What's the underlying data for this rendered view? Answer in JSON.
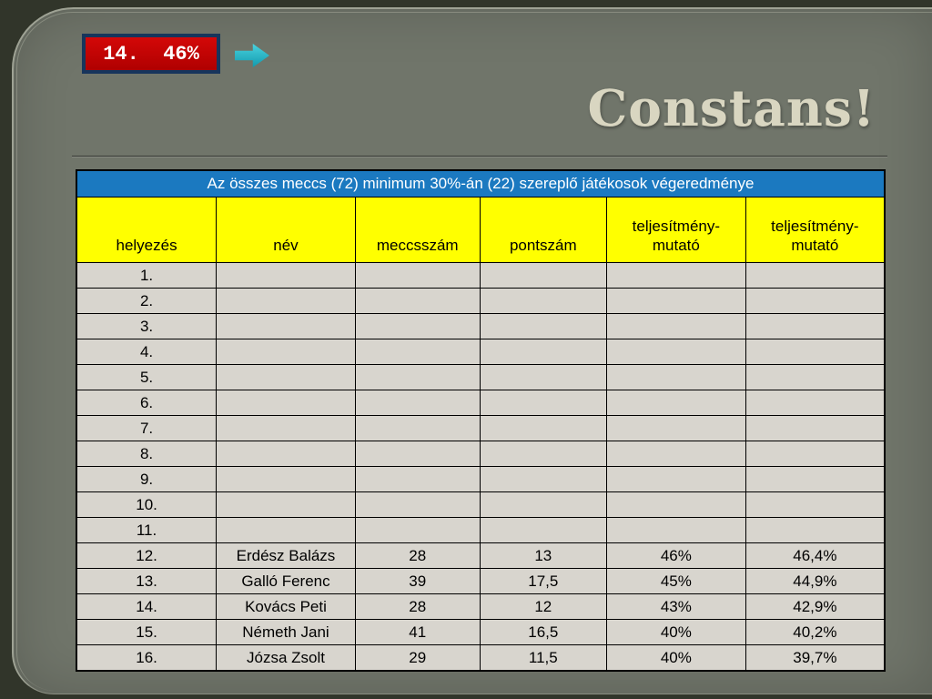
{
  "badge": {
    "label": "14.  46%"
  },
  "title": "Constans!",
  "table": {
    "caption": "Az összes meccs (72) minimum 30%-án (22) szereplő játékosok végeredménye",
    "headers": [
      "helyezés",
      "név",
      "meccsszám",
      "pontszám",
      "teljesítmény-mutató",
      "teljesítmény-mutató"
    ],
    "rows": [
      [
        "1.",
        "",
        "",
        "",
        "",
        ""
      ],
      [
        "2.",
        "",
        "",
        "",
        "",
        ""
      ],
      [
        "3.",
        "",
        "",
        "",
        "",
        ""
      ],
      [
        "4.",
        "",
        "",
        "",
        "",
        ""
      ],
      [
        "5.",
        "",
        "",
        "",
        "",
        ""
      ],
      [
        "6.",
        "",
        "",
        "",
        "",
        ""
      ],
      [
        "7.",
        "",
        "",
        "",
        "",
        ""
      ],
      [
        "8.",
        "",
        "",
        "",
        "",
        ""
      ],
      [
        "9.",
        "",
        "",
        "",
        "",
        ""
      ],
      [
        "10.",
        "",
        "",
        "",
        "",
        ""
      ],
      [
        "11.",
        "",
        "",
        "",
        "",
        ""
      ],
      [
        "12.",
        "Erdész Balázs",
        "28",
        "13",
        "46%",
        "46,4%"
      ],
      [
        "13.",
        "Galló Ferenc",
        "39",
        "17,5",
        "45%",
        "44,9%"
      ],
      [
        "14.",
        "Kovács Peti",
        "28",
        "12",
        "43%",
        "42,9%"
      ],
      [
        "15.",
        "Németh Jani",
        "41",
        "16,5",
        "40%",
        "40,2%"
      ],
      [
        "16.",
        "Józsa Zsolt",
        "29",
        "11,5",
        "40%",
        "39,7%"
      ]
    ]
  },
  "colors": {
    "caption_blue": "#1b79c0",
    "header_yellow": "#ffff00",
    "badge_red": "#c00000",
    "badge_border_navy": "#17355c",
    "arrow_cyan": "#2ab8c8",
    "cell_gray": "#d8d5ce",
    "title_beige": "#d9d6c1",
    "slide_background": "#70756a"
  }
}
